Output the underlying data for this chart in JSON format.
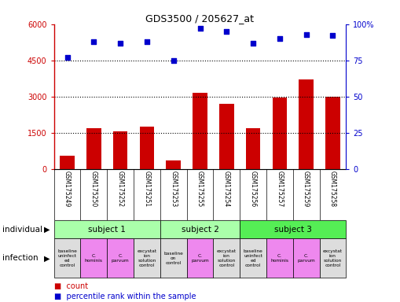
{
  "title": "GDS3500 / 205627_at",
  "samples": [
    "GSM175249",
    "GSM175250",
    "GSM175252",
    "GSM175251",
    "GSM175253",
    "GSM175255",
    "GSM175254",
    "GSM175256",
    "GSM175257",
    "GSM175259",
    "GSM175258"
  ],
  "counts": [
    550,
    1700,
    1550,
    1750,
    350,
    3150,
    2700,
    1700,
    2950,
    3700,
    3000
  ],
  "percentile_ranks": [
    77,
    88,
    87,
    88,
    75,
    97,
    95,
    87,
    90,
    93,
    92
  ],
  "ylim_left": [
    0,
    6000
  ],
  "ylim_right": [
    0,
    100
  ],
  "yticks_left": [
    0,
    1500,
    3000,
    4500,
    6000
  ],
  "ytick_labels_left": [
    "0",
    "1500",
    "3000",
    "4500",
    "6000"
  ],
  "yticks_right": [
    0,
    25,
    50,
    75,
    100
  ],
  "ytick_labels_right": [
    "0",
    "25",
    "50",
    "75",
    "100%"
  ],
  "bar_color": "#cc0000",
  "dot_color": "#0000cc",
  "subjects": [
    {
      "label": "subject 1",
      "start": 0,
      "end": 4,
      "color": "#aaffaa"
    },
    {
      "label": "subject 2",
      "start": 4,
      "end": 7,
      "color": "#aaffaa"
    },
    {
      "label": "subject 3",
      "start": 7,
      "end": 11,
      "color": "#55ee55"
    }
  ],
  "infections": [
    {
      "label": "baseline\nuninfect\ned\ncontrol",
      "col": 0,
      "color": "#dddddd"
    },
    {
      "label": "C.\nhominis",
      "col": 1,
      "color": "#ee88ee"
    },
    {
      "label": "C.\nparvum",
      "col": 2,
      "color": "#ee88ee"
    },
    {
      "label": "excystat\nion\nsolution\ncontrol",
      "col": 3,
      "color": "#dddddd"
    },
    {
      "label": "baseline\non\ncontrol",
      "col": 4,
      "color": "#dddddd"
    },
    {
      "label": "C.\nparvum",
      "col": 5,
      "color": "#ee88ee"
    },
    {
      "label": "excystat\nion\nsolution\ncontrol",
      "col": 6,
      "color": "#dddddd"
    },
    {
      "label": "baseline\nuninfect\ned\ncontrol",
      "col": 7,
      "color": "#dddddd"
    },
    {
      "label": "C.\nhominis",
      "col": 8,
      "color": "#ee88ee"
    },
    {
      "label": "C.\nparvum",
      "col": 9,
      "color": "#ee88ee"
    },
    {
      "label": "excystat\nion\nsolution\ncontrol",
      "col": 10,
      "color": "#dddddd"
    }
  ],
  "background_color": "#ffffff",
  "left_label_color": "#cc0000",
  "right_label_color": "#0000cc",
  "sample_bg_color": "#bbbbbb",
  "individual_label": "individual",
  "infection_label": "infection",
  "legend_count_label": "count",
  "legend_pct_label": "percentile rank within the sample"
}
